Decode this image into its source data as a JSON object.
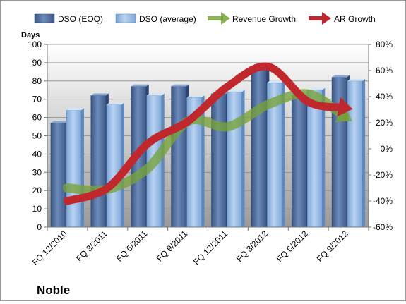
{
  "chart_data": {
    "type": "bar",
    "title": "Noble",
    "ylabel": "Days",
    "y2label": "",
    "categories": [
      "FQ 12/2010",
      "FQ 3/2011",
      "FQ 6/2011",
      "FQ 9/2011",
      "FQ 12/2011",
      "FQ 3/2012",
      "FQ 6/2012",
      "FQ 9/2012"
    ],
    "ylim": [
      0,
      100
    ],
    "yticks": [
      "0",
      "10",
      "20",
      "30",
      "40",
      "50",
      "60",
      "70",
      "80",
      "90",
      "100"
    ],
    "y2lim": [
      -60,
      80
    ],
    "y2ticks": [
      "-60%",
      "-40%",
      "-20%",
      "0%",
      "20%",
      "40%",
      "60%",
      "80%"
    ],
    "grid": true,
    "legend_position": "top",
    "bar_series": [
      {
        "name": "DSO (EOQ)",
        "values": [
          57,
          72,
          77,
          77,
          73,
          88,
          72,
          82
        ],
        "color": "#4f6d9c"
      },
      {
        "name": "DSO (average)",
        "values": [
          64,
          67,
          72,
          71,
          74,
          79,
          75,
          80
        ],
        "color": "#8fb4e3"
      }
    ],
    "line_series": [
      {
        "name": "Revenue Growth",
        "axis": "secondary",
        "values": [
          -30,
          -31,
          -15,
          21,
          17,
          34,
          42,
          23
        ],
        "color": "#77a33a"
      },
      {
        "name": "AR Growth",
        "axis": "secondary",
        "values": [
          -40,
          -30,
          4,
          21,
          48,
          63,
          36,
          31
        ],
        "color": "#c0282d"
      }
    ]
  }
}
